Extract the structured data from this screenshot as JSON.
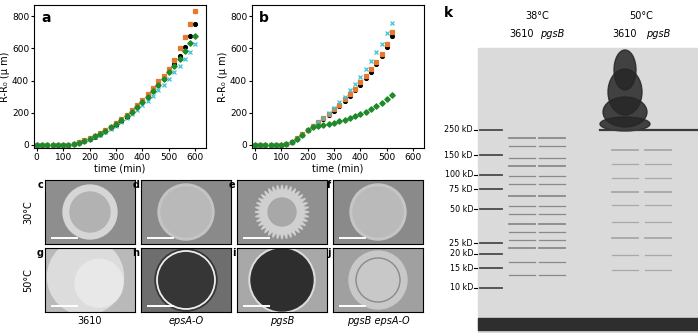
{
  "chart_data": [
    {
      "type": "scatter",
      "annotations": [
        "a"
      ],
      "x_label": "time (min)",
      "y_label": "R-R₀ (μ m)",
      "x": [
        0,
        20,
        40,
        60,
        80,
        100,
        120,
        140,
        160,
        180,
        200,
        220,
        240,
        260,
        280,
        300,
        320,
        340,
        360,
        380,
        400,
        420,
        440,
        460,
        480,
        500,
        520,
        540,
        560,
        580,
        600
      ],
      "series": [
        {
          "color": "#000000",
          "marker": "circle",
          "line_style": "none",
          "values": [
            0,
            0,
            0,
            0,
            0,
            0,
            0,
            5,
            15,
            25,
            35,
            50,
            65,
            85,
            105,
            125,
            150,
            175,
            205,
            235,
            265,
            300,
            335,
            375,
            415,
            460,
            505,
            555,
            610,
            680,
            750
          ]
        },
        {
          "color": "#e8782a",
          "marker": "square",
          "line_style": "none",
          "values": [
            0,
            0,
            0,
            0,
            0,
            0,
            0,
            6,
            16,
            28,
            40,
            55,
            72,
            92,
            112,
            135,
            160,
            188,
            218,
            248,
            280,
            315,
            355,
            395,
            430,
            470,
            530,
            600,
            670,
            750,
            830
          ]
        },
        {
          "color": "#3cc3d8",
          "marker": "x",
          "line_style": "none",
          "values": [
            0,
            0,
            0,
            0,
            0,
            0,
            0,
            5,
            14,
            25,
            35,
            48,
            62,
            80,
            100,
            120,
            142,
            165,
            190,
            218,
            245,
            275,
            305,
            340,
            375,
            410,
            450,
            490,
            535,
            580,
            625
          ]
        },
        {
          "color": "#1f8a2a",
          "marker": "diamond",
          "line_style": "none",
          "values": [
            0,
            0,
            0,
            0,
            0,
            0,
            0,
            4,
            14,
            26,
            38,
            52,
            68,
            86,
            108,
            128,
            152,
            178,
            205,
            235,
            265,
            300,
            335,
            372,
            410,
            450,
            490,
            535,
            585,
            635,
            680
          ]
        }
      ],
      "xlim": [
        -10,
        640
      ],
      "ylim": [
        -20,
        870
      ],
      "xticks": [
        0,
        100,
        200,
        300,
        400,
        500,
        600
      ],
      "yticks": [
        0,
        200,
        400,
        600,
        800
      ]
    },
    {
      "type": "scatter",
      "annotations": [
        "b"
      ],
      "x_label": "time (min)",
      "y_label": "R-R₀ (μ m)",
      "x": [
        0,
        20,
        40,
        60,
        80,
        100,
        120,
        140,
        160,
        180,
        200,
        220,
        240,
        260,
        280,
        300,
        320,
        340,
        360,
        380,
        400,
        420,
        440,
        460,
        480,
        500,
        520
      ],
      "series": [
        {
          "color": "#000000",
          "marker": "circle",
          "line_style": "none",
          "values": [
            0,
            0,
            0,
            0,
            0,
            0,
            5,
            15,
            35,
            60,
            90,
            115,
            135,
            160,
            185,
            210,
            240,
            270,
            305,
            340,
            375,
            415,
            455,
            500,
            550,
            610,
            680
          ]
        },
        {
          "color": "#e8782a",
          "marker": "square",
          "line_style": "none",
          "values": [
            0,
            0,
            0,
            0,
            0,
            0,
            6,
            18,
            40,
            65,
            95,
            118,
            140,
            165,
            190,
            220,
            250,
            282,
            315,
            350,
            388,
            428,
            470,
            515,
            565,
            630,
            700
          ]
        },
        {
          "color": "#3cc3d8",
          "marker": "x",
          "line_style": "none",
          "values": [
            0,
            0,
            0,
            0,
            0,
            0,
            5,
            16,
            38,
            62,
            92,
            115,
            140,
            168,
            198,
            230,
            265,
            300,
            340,
            380,
            425,
            470,
            520,
            575,
            630,
            695,
            760
          ]
        },
        {
          "color": "#1f8a2a",
          "marker": "diamond",
          "line_style": "none",
          "values": [
            0,
            0,
            0,
            0,
            0,
            0,
            5,
            15,
            35,
            60,
            90,
            110,
            120,
            125,
            130,
            135,
            145,
            155,
            165,
            178,
            190,
            205,
            222,
            240,
            262,
            285,
            310
          ]
        }
      ],
      "xlim": [
        -10,
        640
      ],
      "ylim": [
        -20,
        870
      ],
      "xticks": [
        0,
        100,
        200,
        300,
        400,
        500,
        600
      ],
      "yticks": [
        0,
        200,
        400,
        600,
        800
      ]
    }
  ],
  "images": {
    "panels": [
      "c",
      "d",
      "e",
      "f",
      "g",
      "h",
      "i",
      "j"
    ],
    "rows": [
      "30°C",
      "50°C"
    ],
    "columns": [
      "3610",
      "epsA-O",
      "pgsB",
      "pgsB epsA-O"
    ]
  },
  "gel": {
    "panel": "k",
    "groups": [
      {
        "label": "38°C",
        "lanes": [
          "3610",
          "pgsB"
        ]
      },
      {
        "label": "50°C",
        "lanes": [
          "3610",
          "pgsB"
        ]
      }
    ],
    "ladder": [
      {
        "value": 250,
        "label": "250 kD"
      },
      {
        "value": 150,
        "label": "150 kD"
      },
      {
        "value": 100,
        "label": "100 kD"
      },
      {
        "value": 75,
        "label": "75 kD"
      },
      {
        "value": 50,
        "label": "50 kD"
      },
      {
        "value": 25,
        "label": "25 kD"
      },
      {
        "value": 20,
        "label": "20 kD"
      },
      {
        "value": 15,
        "label": "15 kD"
      },
      {
        "value": 10,
        "label": "10 kD"
      }
    ]
  }
}
